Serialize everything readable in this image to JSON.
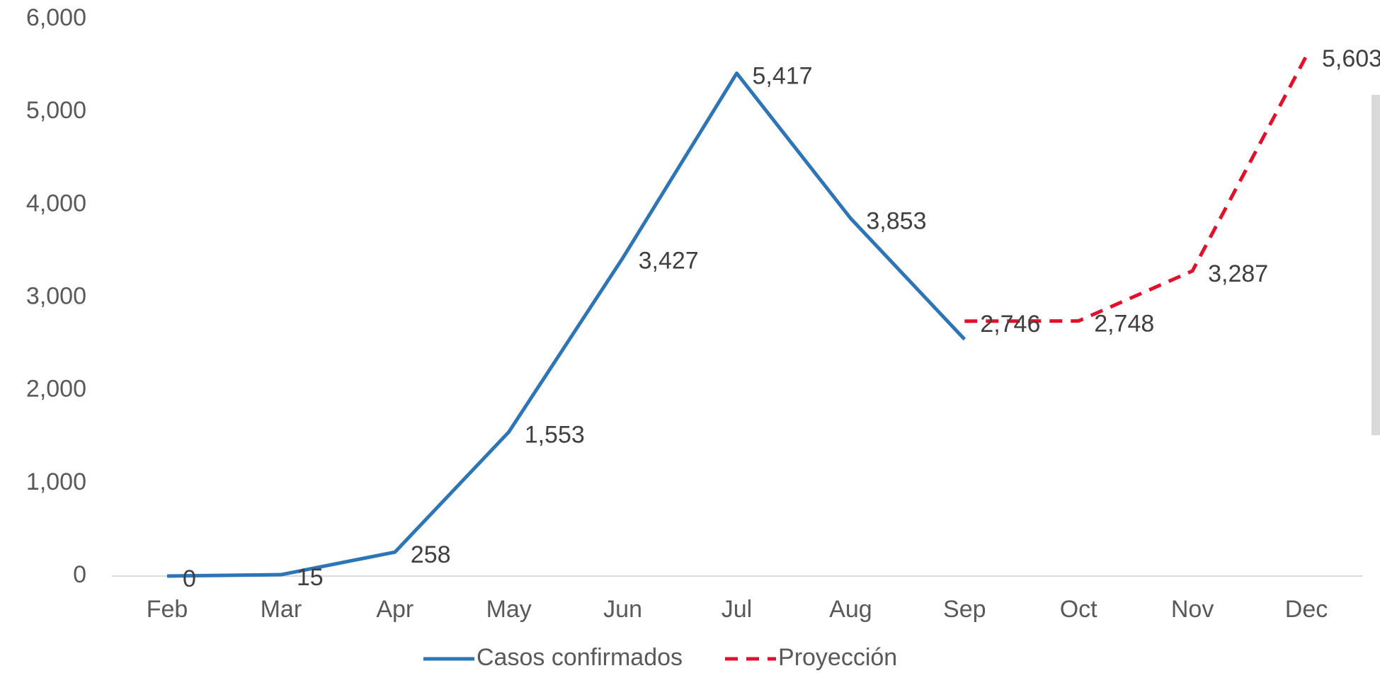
{
  "chart_data": {
    "type": "line",
    "categories": [
      "Feb",
      "Mar",
      "Apr",
      "May",
      "Jun",
      "Jul",
      "Aug",
      "Sep",
      "Oct",
      "Nov",
      "Dec"
    ],
    "series": [
      {
        "name": "Casos confirmados",
        "color": "#2e75b6",
        "dash": false,
        "values": [
          0,
          15,
          258,
          1553,
          3427,
          5417,
          3853,
          2550,
          null,
          null,
          null
        ],
        "value_labels": [
          "0",
          "15",
          "258",
          "1,553",
          "3,427",
          "5,417",
          "3,853",
          null,
          null,
          null,
          null
        ]
      },
      {
        "name": "Proyección",
        "color": "#e0112b",
        "dash": true,
        "values": [
          null,
          null,
          null,
          null,
          null,
          null,
          null,
          2746,
          2748,
          3287,
          5603
        ],
        "value_labels": [
          null,
          null,
          null,
          null,
          null,
          null,
          null,
          "2,746",
          "2,748",
          "3,287",
          "5,603"
        ]
      }
    ],
    "ylim": [
      0,
      6000
    ],
    "yticks": [
      {
        "value": 0,
        "label": "0"
      },
      {
        "value": 1000,
        "label": "1,000"
      },
      {
        "value": 2000,
        "label": "2,000"
      },
      {
        "value": 3000,
        "label": "3,000"
      },
      {
        "value": 4000,
        "label": "4,000"
      },
      {
        "value": 5000,
        "label": "5,000"
      },
      {
        "value": 6000,
        "label": "6,000"
      }
    ],
    "grid": false,
    "legend": "bottom"
  }
}
